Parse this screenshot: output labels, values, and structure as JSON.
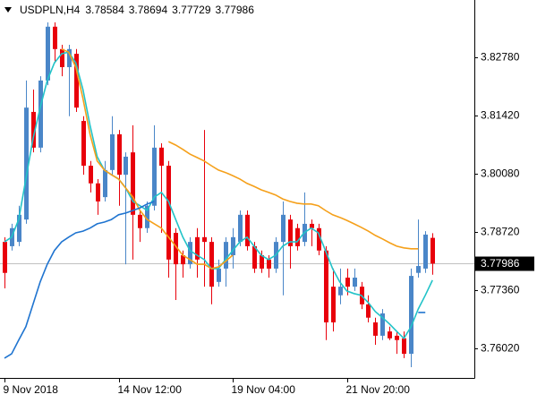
{
  "chart_data": {
    "type": "candlestick",
    "title": "USDPLN,H4",
    "categories": [
      "9 Nov 2018",
      null,
      null,
      null,
      null,
      null,
      null,
      null,
      null,
      null,
      null,
      null,
      null,
      null,
      null,
      null,
      "14 Nov 12:00",
      null,
      null,
      null,
      null,
      null,
      null,
      null,
      null,
      null,
      null,
      null,
      null,
      null,
      null,
      null,
      "19 Nov 04:00",
      null,
      null,
      null,
      null,
      null,
      null,
      null,
      null,
      null,
      null,
      null,
      null,
      null,
      null,
      null,
      "21 Nov 20:00",
      null,
      null,
      null,
      null,
      null,
      null,
      null,
      null,
      null,
      null,
      null,
      null
    ],
    "open": [
      3.7849,
      3.7839,
      3.7849,
      3.7901,
      3.8151,
      3.8068,
      3.8224,
      3.8349,
      3.8297,
      3.8255,
      3.8286,
      3.813,
      3.8026,
      3.7985,
      3.7953,
      3.8016,
      3.8099,
      3.8005,
      3.8057,
      3.7912,
      3.7881,
      3.7933,
      3.8068,
      3.8026,
      3.787,
      3.7818,
      3.7797,
      3.786,
      3.786,
      3.7849,
      3.7756,
      3.7787,
      3.7818,
      3.7849,
      3.7912,
      3.7839,
      3.7818,
      3.7808,
      3.7787,
      3.7849,
      3.7901,
      3.7881,
      3.7849,
      3.7891,
      3.7881,
      3.7829,
      3.7745,
      3.7725,
      3.7766,
      3.7745,
      3.7745,
      3.7704,
      3.7662,
      3.7631,
      3.7641,
      3.7631,
      3.7625,
      3.7589,
      3.7777,
      3.7787,
      3.78584
    ],
    "high": [
      3.786,
      3.7891,
      3.7933,
      3.8224,
      3.8203,
      3.8234,
      3.8359,
      3.8359,
      3.8307,
      3.8307,
      3.8297,
      3.8141,
      3.8037,
      3.7995,
      3.8037,
      3.8141,
      3.8109,
      3.8057,
      3.812,
      3.7922,
      3.7943,
      3.812,
      3.8078,
      3.8037,
      3.7881,
      3.7829,
      3.786,
      3.7881,
      3.8109,
      3.786,
      3.7808,
      3.786,
      3.7881,
      3.7922,
      3.7922,
      3.7849,
      3.7829,
      3.7818,
      3.786,
      3.7943,
      3.7912,
      3.7891,
      3.7964,
      3.7901,
      3.7891,
      3.7839,
      3.7787,
      3.7787,
      3.7787,
      3.7787,
      3.7756,
      3.7725,
      3.7673,
      3.7693,
      3.7652,
      3.7641,
      3.7641,
      3.7787,
      3.7901,
      3.7874,
      3.78694
    ],
    "low": [
      3.7741,
      3.7829,
      3.7839,
      3.7891,
      3.8057,
      3.8057,
      3.8213,
      3.8265,
      3.8234,
      3.8141,
      3.8151,
      3.8005,
      3.7964,
      3.7912,
      3.7943,
      3.8005,
      3.7933,
      3.7797,
      3.7808,
      3.7849,
      3.787,
      3.7922,
      3.787,
      3.7766,
      3.7714,
      3.7766,
      3.7787,
      3.7766,
      3.7745,
      3.7704,
      3.7745,
      3.7745,
      3.7787,
      3.7839,
      3.7829,
      3.7777,
      3.7777,
      3.7766,
      3.7777,
      3.7725,
      3.7787,
      3.7829,
      3.7839,
      3.7839,
      3.7818,
      3.7621,
      3.7641,
      3.7704,
      3.7725,
      3.7735,
      3.7693,
      3.7662,
      3.761,
      3.7621,
      3.7621,
      3.7589,
      3.7579,
      3.7558,
      3.7766,
      3.7777,
      3.77729
    ],
    "close": [
      3.7777,
      3.7881,
      3.7912,
      3.8161,
      3.8068,
      3.8224,
      3.8349,
      3.8297,
      3.8255,
      3.8297,
      3.8161,
      3.8026,
      3.7985,
      3.7943,
      3.8016,
      3.8099,
      3.8005,
      3.8047,
      3.7912,
      3.7881,
      3.7933,
      3.8068,
      3.8026,
      3.7808,
      3.7797,
      3.7797,
      3.7849,
      3.7808,
      3.7849,
      3.7745,
      3.7787,
      3.7849,
      3.786,
      3.7912,
      3.7839,
      3.7787,
      3.7787,
      3.7787,
      3.7849,
      3.7912,
      3.7839,
      3.7839,
      3.7891,
      3.7881,
      3.7829,
      3.7662,
      3.7662,
      3.7745,
      3.7745,
      3.7766,
      3.7704,
      3.7673,
      3.7631,
      3.7683,
      3.7625,
      3.7621,
      3.7589,
      3.777,
      3.7793,
      3.7866,
      3.77986
    ],
    "up_color": "#4a86c8",
    "down_color": "#e8000b",
    "series": [
      {
        "color": "#22c3c8",
        "values": [
          3.7849,
          3.786,
          3.7901,
          3.7995,
          3.8089,
          3.8161,
          3.8224,
          3.8265,
          3.8286,
          3.829,
          3.8265,
          3.8203,
          3.812,
          3.8047,
          3.8016,
          3.8005,
          3.7995,
          3.7974,
          3.7943,
          3.7933,
          3.7922,
          3.7953,
          3.7964,
          3.7943,
          3.7901,
          3.786,
          3.7829,
          3.7818,
          3.7808,
          3.7787,
          3.7787,
          3.7808,
          3.7829,
          3.7849,
          3.786,
          3.7839,
          3.7818,
          3.7808,
          3.7818,
          3.7839,
          3.7849,
          3.7849,
          3.787,
          3.7881,
          3.787,
          3.7829,
          3.7787,
          3.7756,
          3.7735,
          3.7729,
          3.7725,
          3.7708,
          3.7687,
          3.7673,
          3.7658,
          3.7641,
          3.7625,
          3.7652,
          3.7693,
          3.7725,
          3.776
        ]
      },
      {
        "color": "#f5a01a",
        "values": [
          null,
          null,
          null,
          null,
          null,
          null,
          null,
          null,
          3.8297,
          3.829,
          3.8255,
          3.8182,
          3.8099,
          3.8037,
          3.8016,
          3.8005,
          3.7995,
          3.7974,
          3.7953,
          3.7922,
          3.7901,
          3.7891,
          3.7881,
          3.786,
          3.7839,
          3.7818,
          3.7808,
          3.7797,
          3.7797,
          3.7787,
          3.7791,
          3.7804,
          3.7818,
          null,
          null,
          null,
          null,
          null,
          null,
          null,
          null,
          null,
          null,
          null,
          null,
          null,
          null,
          null,
          null,
          null,
          null,
          null,
          null,
          null,
          null,
          null,
          null,
          null,
          null,
          null,
          null
        ]
      },
      {
        "color": "#f5a01a",
        "values": [
          null,
          null,
          null,
          null,
          null,
          null,
          null,
          null,
          null,
          null,
          null,
          null,
          null,
          null,
          null,
          null,
          null,
          null,
          null,
          null,
          null,
          null,
          null,
          3.8082,
          3.8074,
          3.8064,
          3.8053,
          3.8045,
          3.8037,
          3.8026,
          3.8016,
          3.801,
          3.8003,
          3.7995,
          3.7985,
          3.7978,
          3.797,
          3.7964,
          3.7958,
          3.7949,
          3.7943,
          3.7939,
          3.7937,
          3.7937,
          3.7933,
          3.7922,
          3.7912,
          3.7906,
          3.7899,
          3.7891,
          3.7883,
          3.7874,
          3.7864,
          3.7856,
          3.7847,
          3.7839,
          3.7835,
          3.7833,
          3.7833,
          null,
          null
        ]
      },
      {
        "color": "#1f74d0",
        "values": [
          3.7579,
          3.7589,
          3.7621,
          3.7652,
          3.7704,
          3.7756,
          3.7797,
          3.7829,
          3.7849,
          3.786,
          3.787,
          3.7874,
          3.7881,
          3.7891,
          3.7895,
          3.7901,
          3.7912,
          3.7916,
          3.7922,
          3.7928,
          3.7937,
          3.7943,
          null,
          null,
          null,
          null,
          null,
          null,
          null,
          null,
          null,
          null,
          null,
          null,
          null,
          null,
          null,
          null,
          null,
          null,
          null,
          null,
          null,
          null,
          null,
          null,
          null,
          null,
          null,
          null,
          null,
          null,
          null,
          null,
          null,
          null,
          null,
          null,
          3.7685,
          3.7685,
          null
        ]
      }
    ],
    "ylim": [
      3.7533,
      3.8411
    ],
    "yticks": [
      {
        "value": 3.8278,
        "label": "3.82780"
      },
      {
        "value": 3.8142,
        "label": "3.81420"
      },
      {
        "value": 3.8008,
        "label": "3.80080"
      },
      {
        "value": 3.7872,
        "label": "3.78720"
      },
      {
        "value": 3.7736,
        "label": "3.77360"
      },
      {
        "value": 3.7602,
        "label": "3.76020"
      }
    ]
  }
}
